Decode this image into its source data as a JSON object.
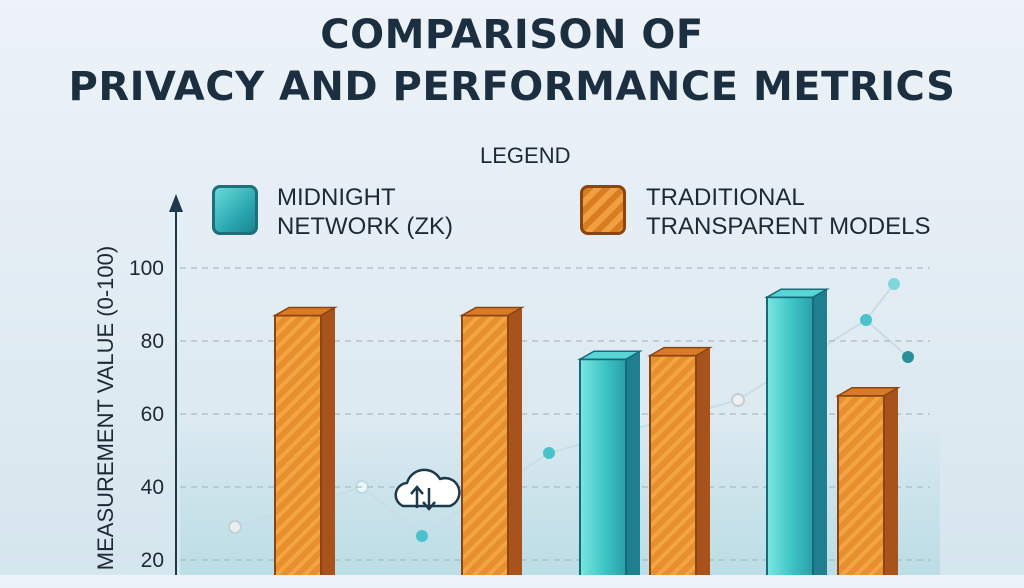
{
  "chart_data": {
    "type": "bar",
    "title_lines": [
      "COMPARISON OF",
      "PRIVACY AND PERFORMANCE METRICS"
    ],
    "legend_heading": "LEGEND",
    "ylabel": "MEASUREMENT VALUE (0-100)",
    "ylim": [
      0,
      100
    ],
    "yticks": [
      20,
      40,
      60,
      80,
      100
    ],
    "grid": true,
    "legend_placement": "top",
    "series": [
      {
        "name_lines": [
          "MIDNIGHT",
          "NETWORK (ZK)"
        ],
        "color": "#3cc4c4",
        "values": [
          null,
          null,
          75,
          null,
          92,
          null
        ]
      },
      {
        "name_lines": [
          "TRADITIONAL",
          "TRANSPARENT MODELS"
        ],
        "color": "#e08a2a",
        "values": [
          87,
          87,
          null,
          76,
          null,
          65
        ]
      }
    ],
    "bar_order": [
      {
        "series": 1,
        "value": 87
      },
      {
        "series": 1,
        "value": 87
      },
      {
        "series": 0,
        "value": 75
      },
      {
        "series": 1,
        "value": 76
      },
      {
        "series": 0,
        "value": 92
      },
      {
        "series": 1,
        "value": 65
      }
    ]
  },
  "icons": [
    "cloud-sync-icon"
  ]
}
